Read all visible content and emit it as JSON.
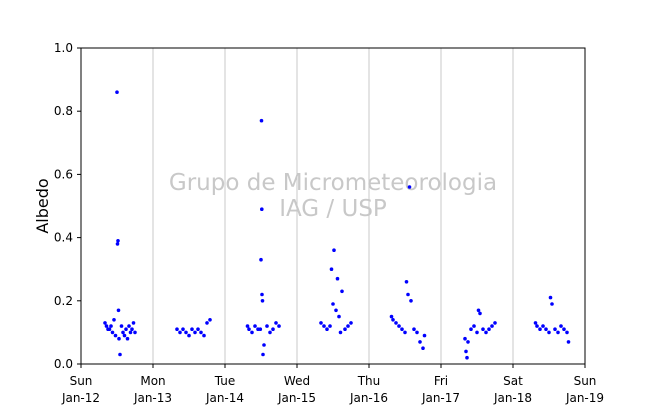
{
  "chart_data": {
    "type": "scatter",
    "ylabel": "Albedo",
    "xlabel": "",
    "ylim": [
      0.0,
      1.0
    ],
    "y_ticks": [
      "0.0",
      "0.2",
      "0.4",
      "0.6",
      "0.8",
      "1.0"
    ],
    "x_ticks": [
      {
        "line1": "Sun",
        "line2": "Jan-12"
      },
      {
        "line1": "Mon",
        "line2": "Jan-13"
      },
      {
        "line1": "Tue",
        "line2": "Jan-14"
      },
      {
        "line1": "Wed",
        "line2": "Jan-15"
      },
      {
        "line1": "Thu",
        "line2": "Jan-16"
      },
      {
        "line1": "Fri",
        "line2": "Jan-17"
      },
      {
        "line1": "Sat",
        "line2": "Jan-18"
      },
      {
        "line1": "Sun",
        "line2": "Jan-19"
      }
    ],
    "grid": "vertical",
    "marker_color": "#0000ff",
    "watermark": [
      "Grupo de Micrometeorologia",
      "IAG / USP"
    ],
    "series": [
      {
        "x": [
          "2012-01-01 08:00",
          "2012-01-01 08:30",
          "2012-01-01 09:00",
          "2012-01-01 09:30",
          "2012-01-01 10:00",
          "2012-01-01 10:30",
          "2012-01-01 11:00",
          "2012-01-01 11:30",
          "2012-01-01 12:00",
          "2012-01-01 12:10",
          "2012-01-01 12:20",
          "2012-01-01 12:30",
          "2012-01-01 12:40",
          "2012-01-01 13:00",
          "2012-01-01 13:30",
          "2012-01-01 14:00",
          "2012-01-01 14:30",
          "2012-01-01 15:00",
          "2012-01-01 15:30",
          "2012-01-01 16:00",
          "2012-01-01 16:30",
          "2012-01-01 17:00",
          "2012-01-01 17:30",
          "2012-01-01 18:00",
          "2012-01-02 08:00",
          "2012-01-02 09:00",
          "2012-01-02 10:00",
          "2012-01-02 11:00",
          "2012-01-02 12:00",
          "2012-01-02 13:00",
          "2012-01-02 14:00",
          "2012-01-02 15:00",
          "2012-01-02 16:00",
          "2012-01-02 17:00",
          "2012-01-02 18:00",
          "2012-01-02 19:00",
          "2012-01-03 07:30",
          "2012-01-03 08:00",
          "2012-01-03 09:00",
          "2012-01-03 10:00",
          "2012-01-03 11:00",
          "2012-01-03 11:45",
          "2012-01-03 12:00",
          "2012-01-03 12:10",
          "2012-01-03 12:15",
          "2012-01-03 12:20",
          "2012-01-03 12:30",
          "2012-01-03 12:40",
          "2012-01-03 13:00",
          "2012-01-03 14:00",
          "2012-01-03 15:00",
          "2012-01-03 16:00",
          "2012-01-03 17:00",
          "2012-01-03 18:00",
          "2012-01-04 08:00",
          "2012-01-04 09:00",
          "2012-01-04 10:00",
          "2012-01-04 11:00",
          "2012-01-04 11:30",
          "2012-01-04 12:00",
          "2012-01-04 12:20",
          "2012-01-04 13:00",
          "2012-01-04 13:30",
          "2012-01-04 14:00",
          "2012-01-04 14:30",
          "2012-01-04 15:00",
          "2012-01-04 16:00",
          "2012-01-04 17:00",
          "2012-01-04 18:00",
          "2012-01-05 07:30",
          "2012-01-05 08:00",
          "2012-01-05 09:00",
          "2012-01-05 10:00",
          "2012-01-05 11:00",
          "2012-01-05 12:00",
          "2012-01-05 12:30",
          "2012-01-05 13:00",
          "2012-01-05 13:30",
          "2012-01-05 14:00",
          "2012-01-05 15:00",
          "2012-01-05 16:00",
          "2012-01-05 17:00",
          "2012-01-05 18:00",
          "2012-01-05 18:30",
          "2012-01-06 08:00",
          "2012-01-06 08:20",
          "2012-01-06 08:40",
          "2012-01-06 09:00",
          "2012-01-06 10:00",
          "2012-01-06 11:00",
          "2012-01-06 12:00",
          "2012-01-06 12:30",
          "2012-01-06 13:00",
          "2012-01-06 14:00",
          "2012-01-06 15:00",
          "2012-01-06 16:00",
          "2012-01-06 17:00",
          "2012-01-06 18:00",
          "2012-01-07 07:30",
          "2012-01-07 08:00",
          "2012-01-07 09:00",
          "2012-01-07 10:00",
          "2012-01-07 11:00",
          "2012-01-07 12:00",
          "2012-01-07 12:30",
          "2012-01-07 13:00",
          "2012-01-07 14:00",
          "2012-01-07 15:00",
          "2012-01-07 16:00",
          "2012-01-07 17:00",
          "2012-01-07 18:00",
          "2012-01-07 18:30"
        ],
        "y": [
          0.13,
          0.12,
          0.11,
          0.11,
          0.12,
          0.1,
          0.14,
          0.09,
          0.86,
          0.38,
          0.39,
          0.17,
          0.08,
          0.03,
          0.12,
          0.1,
          0.09,
          0.11,
          0.08,
          0.12,
          0.1,
          0.11,
          0.13,
          0.1,
          0.11,
          0.1,
          0.11,
          0.1,
          0.09,
          0.11,
          0.1,
          0.11,
          0.1,
          0.09,
          0.13,
          0.14,
          0.12,
          0.11,
          0.1,
          0.12,
          0.11,
          0.11,
          0.33,
          0.77,
          0.49,
          0.22,
          0.2,
          0.03,
          0.06,
          0.12,
          0.1,
          0.11,
          0.13,
          0.12,
          0.13,
          0.12,
          0.11,
          0.12,
          0.3,
          0.19,
          0.36,
          0.17,
          0.27,
          0.15,
          0.1,
          0.23,
          0.11,
          0.12,
          0.13,
          0.15,
          0.14,
          0.13,
          0.12,
          0.11,
          0.1,
          0.26,
          0.22,
          0.56,
          0.2,
          0.11,
          0.1,
          0.07,
          0.05,
          0.09,
          0.08,
          0.04,
          0.02,
          0.07,
          0.11,
          0.12,
          0.1,
          0.17,
          0.16,
          0.11,
          0.1,
          0.11,
          0.12,
          0.13,
          0.13,
          0.12,
          0.11,
          0.12,
          0.11,
          0.1,
          0.21,
          0.19,
          0.11,
          0.1,
          0.12,
          0.11,
          0.1,
          0.07
        ]
      }
    ]
  }
}
